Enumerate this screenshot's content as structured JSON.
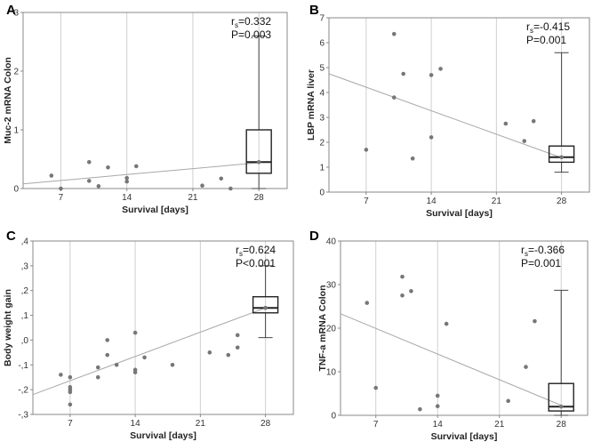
{
  "chart_data": [
    {
      "type": "scatter",
      "panel_label": "A",
      "ylabel": "Muc-2 mRNA Colon",
      "xlabel": "Survival [days]",
      "xticks": [
        "7",
        "14",
        "21",
        "28"
      ],
      "xtick_values": [
        7,
        14,
        21,
        28
      ],
      "yticks": [
        "0",
        "1",
        "2",
        "3"
      ],
      "ytick_values": [
        0,
        1,
        2,
        3
      ],
      "xlim": [
        3,
        31
      ],
      "ylim": [
        0,
        3
      ],
      "stat_r": "r",
      "stat_r_sub": "s",
      "stat_r_value": "=0.332",
      "stat_p": "P=0.003",
      "points": [
        [
          6,
          0.22
        ],
        [
          7,
          0.0
        ],
        [
          10,
          0.45
        ],
        [
          10,
          0.13
        ],
        [
          11,
          0.04
        ],
        [
          12,
          0.36
        ],
        [
          14,
          0.18
        ],
        [
          14,
          0.12
        ],
        [
          15,
          0.38
        ],
        [
          22,
          0.05
        ],
        [
          24,
          0.17
        ],
        [
          25,
          0.0
        ],
        [
          28,
          0.45
        ]
      ],
      "regression": [
        [
          3,
          0.08
        ],
        [
          28,
          0.44
        ]
      ],
      "box": {
        "x": 28,
        "q1": 0.26,
        "median": 0.45,
        "q3": 1.0,
        "whisker_low": 0.0,
        "whisker_high": 2.6
      }
    },
    {
      "type": "scatter",
      "panel_label": "B",
      "ylabel": "LBP mRNA liver",
      "xlabel": "Survival [days]",
      "xticks": [
        "7",
        "14",
        "21",
        "28"
      ],
      "xtick_values": [
        7,
        14,
        21,
        28
      ],
      "yticks": [
        "0",
        "1",
        "2",
        "3",
        "4",
        "5",
        "6",
        "7"
      ],
      "ytick_values": [
        0,
        1,
        2,
        3,
        4,
        5,
        6,
        7
      ],
      "xlim": [
        3,
        31
      ],
      "ylim": [
        0,
        7
      ],
      "stat_r": "r",
      "stat_r_sub": "s",
      "stat_r_value": "=-0.415",
      "stat_p": "P=0.001",
      "points": [
        [
          7,
          1.7
        ],
        [
          10,
          6.35
        ],
        [
          10,
          3.8
        ],
        [
          11,
          4.75
        ],
        [
          12,
          1.35
        ],
        [
          14,
          4.7
        ],
        [
          14,
          2.2
        ],
        [
          15,
          4.95
        ],
        [
          22,
          2.75
        ],
        [
          24,
          2.05
        ],
        [
          25,
          2.85
        ],
        [
          28,
          1.4
        ]
      ],
      "regression": [
        [
          3,
          4.75
        ],
        [
          28,
          1.38
        ]
      ],
      "box": {
        "x": 28,
        "q1": 1.2,
        "median": 1.4,
        "q3": 1.85,
        "whisker_low": 0.8,
        "whisker_high": 5.6
      }
    },
    {
      "type": "scatter",
      "panel_label": "C",
      "ylabel": "Body weight gain",
      "xlabel": "Survival [days]",
      "xticks": [
        "7",
        "14",
        "21",
        "28"
      ],
      "xtick_values": [
        7,
        14,
        21,
        28
      ],
      "yticks": [
        "-,3",
        "-,2",
        "-,1",
        ",0",
        ",1",
        ",2",
        ",3",
        ",4"
      ],
      "ytick_values": [
        -0.3,
        -0.2,
        -0.1,
        0.0,
        0.1,
        0.2,
        0.3,
        0.4
      ],
      "xlim": [
        3,
        31
      ],
      "ylim": [
        -0.3,
        0.4
      ],
      "stat_r": "r",
      "stat_r_sub": "s",
      "stat_r_value": "=0.624",
      "stat_p": "P<0.001",
      "points": [
        [
          6,
          -0.14
        ],
        [
          7,
          -0.15
        ],
        [
          7,
          -0.2
        ],
        [
          7,
          -0.19
        ],
        [
          7,
          -0.21
        ],
        [
          7,
          -0.26
        ],
        [
          10,
          -0.11
        ],
        [
          10,
          -0.15
        ],
        [
          11,
          0.0
        ],
        [
          11,
          -0.06
        ],
        [
          12,
          -0.1
        ],
        [
          14,
          0.03
        ],
        [
          14,
          -0.12
        ],
        [
          14,
          -0.13
        ],
        [
          15,
          -0.07
        ],
        [
          18,
          -0.1
        ],
        [
          22,
          -0.05
        ],
        [
          24,
          -0.06
        ],
        [
          25,
          -0.03
        ],
        [
          25,
          0.02
        ],
        [
          28,
          0.13
        ]
      ],
      "regression": [
        [
          3,
          -0.22
        ],
        [
          28,
          0.13
        ]
      ],
      "box": {
        "x": 28,
        "q1": 0.11,
        "median": 0.13,
        "q3": 0.175,
        "whisker_low": 0.01,
        "whisker_high": 0.3
      }
    },
    {
      "type": "scatter",
      "panel_label": "D",
      "ylabel": "TNF-a mRNA Colon",
      "xlabel": "Survival [days]",
      "xticks": [
        "7",
        "14",
        "21",
        "28"
      ],
      "xtick_values": [
        7,
        14,
        21,
        28
      ],
      "yticks": [
        "0",
        "10",
        "20",
        "30",
        "40"
      ],
      "ytick_values": [
        0,
        10,
        20,
        30,
        40
      ],
      "xlim": [
        3,
        31
      ],
      "ylim": [
        0,
        40
      ],
      "stat_r": "r",
      "stat_r_sub": "s",
      "stat_r_value": "=-0.366",
      "stat_p": "P=0.001",
      "points": [
        [
          6,
          25.8
        ],
        [
          7,
          6.3
        ],
        [
          10,
          31.8
        ],
        [
          10,
          27.5
        ],
        [
          11,
          28.5
        ],
        [
          12,
          1.4
        ],
        [
          14,
          4.5
        ],
        [
          14,
          2.1
        ],
        [
          15,
          21.0
        ],
        [
          22,
          3.3
        ],
        [
          24,
          11.1
        ],
        [
          25,
          21.6
        ],
        [
          28,
          2.0
        ]
      ],
      "regression": [
        [
          3,
          23.3
        ],
        [
          28,
          2.3
        ]
      ],
      "box": {
        "x": 28,
        "q1": 1.0,
        "median": 2.0,
        "q3": 7.3,
        "whisker_low": 0.0,
        "whisker_high": 28.7
      }
    }
  ]
}
